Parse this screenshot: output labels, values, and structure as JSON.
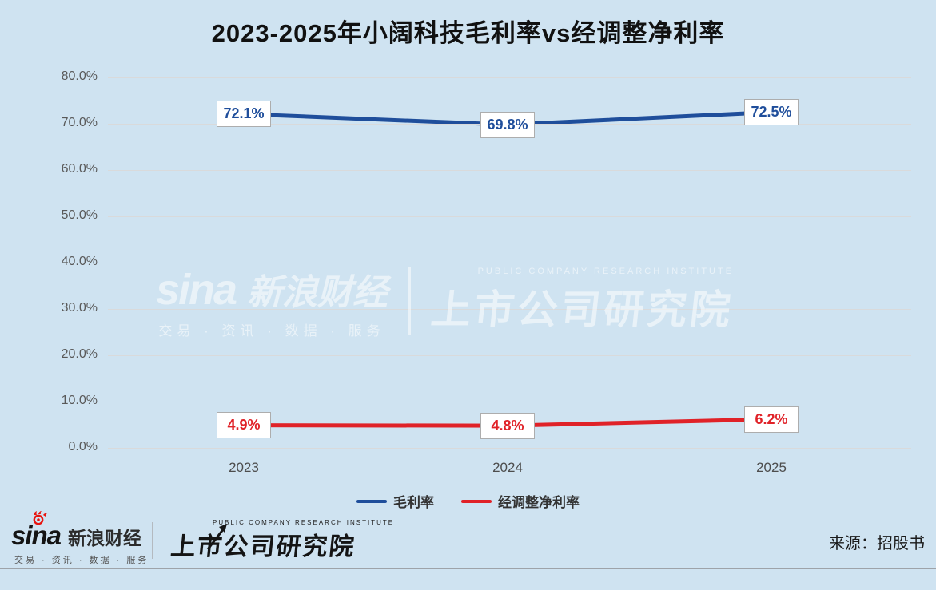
{
  "title": "2023-2025年小阔科技毛利率vs经调整净利率",
  "chart_data": {
    "type": "line",
    "title": "2023-2025年小阔科技毛利率vs经调整净利率",
    "categories": [
      "2023",
      "2024",
      "2025"
    ],
    "series": [
      {
        "name": "毛利率",
        "color": "#1f4e9b",
        "values": [
          72.1,
          69.8,
          72.5
        ],
        "labels": [
          "72.1%",
          "69.8%",
          "72.5%"
        ]
      },
      {
        "name": "经调整净利率",
        "color": "#e02228",
        "values": [
          4.9,
          4.8,
          6.2
        ],
        "labels": [
          "4.9%",
          "4.8%",
          "6.2%"
        ]
      }
    ],
    "ylim": [
      0,
      80
    ],
    "ytick_step": 10,
    "ytick_labels": [
      "0.0%",
      "10.0%",
      "20.0%",
      "30.0%",
      "40.0%",
      "50.0%",
      "60.0%",
      "70.0%",
      "80.0%"
    ],
    "grid": true,
    "legend_position": "bottom"
  },
  "watermark": {
    "sina_logo": "sina",
    "sina_name": "新浪财经",
    "sina_tagline": "交易 · 资讯 · 数据 · 服务",
    "institute_en": "PUBLIC COMPANY RESEARCH INSTITUTE",
    "institute": "上市公司研究院"
  },
  "footer": {
    "sina_logo": "sina",
    "sina_name": "新浪财经",
    "sina_tagline": "交易 · 资讯 · 数据 · 服务",
    "institute_en": "PUBLIC COMPANY RESEARCH INSTITUTE",
    "institute": "上市公司研究院",
    "source": "来源：招股书"
  },
  "colors": {
    "background": "#cfe3f1",
    "gross_margin_line": "#1f4e9b",
    "adjusted_net_margin_line": "#e02228",
    "gridline": "#d9dadb",
    "title_text": "#111111"
  }
}
